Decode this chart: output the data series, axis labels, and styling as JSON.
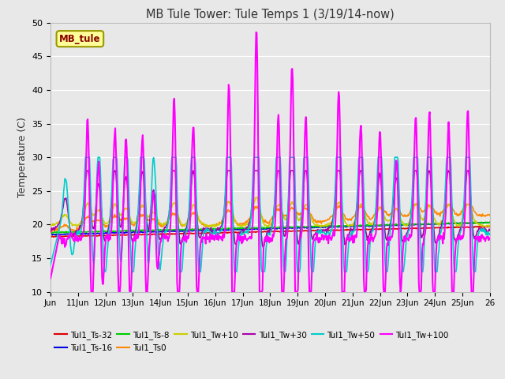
{
  "title": "MB Tule Tower: Tule Temps 1 (3/19/14-now)",
  "ylabel": "Temperature (C)",
  "xlim_days": [
    0,
    16
  ],
  "ylim": [
    10,
    50
  ],
  "yticks": [
    10,
    15,
    20,
    25,
    30,
    35,
    40,
    45,
    50
  ],
  "xtick_labels": [
    "Jun",
    "11Jun",
    "12Jun",
    "13Jun",
    "14Jun",
    "15Jun",
    "16Jun",
    "17Jun",
    "18Jun",
    "19Jun",
    "20Jun",
    "21Jun",
    "22Jun",
    "23Jun",
    "24Jun",
    "25Jun",
    "26"
  ],
  "annotation_box": "MB_tule",
  "background_color": "#e8e8e8",
  "plot_bg_color": "#e8e8e8",
  "series": [
    {
      "label": "Tul1_Ts-32",
      "color": "#dd0000",
      "lw": 1.2
    },
    {
      "label": "Tul1_Ts-16",
      "color": "#0000dd",
      "lw": 1.2
    },
    {
      "label": "Tul1_Ts-8",
      "color": "#00cc00",
      "lw": 1.2
    },
    {
      "label": "Tul1_Ts0",
      "color": "#ff8800",
      "lw": 1.2
    },
    {
      "label": "Tul1_Tw+10",
      "color": "#cccc00",
      "lw": 1.2
    },
    {
      "label": "Tul1_Tw+30",
      "color": "#aa00aa",
      "lw": 1.2
    },
    {
      "label": "Tul1_Tw+50",
      "color": "#00cccc",
      "lw": 1.2
    },
    {
      "label": "Tul1_Tw+100",
      "color": "#ff00ff",
      "lw": 1.5
    }
  ],
  "spike_times": [
    0.55,
    1.35,
    1.75,
    2.35,
    2.75,
    3.35,
    3.75,
    4.5,
    5.2,
    6.5,
    7.5,
    8.3,
    8.8,
    9.3,
    10.5,
    11.3,
    12.0,
    12.6,
    13.3,
    13.8,
    14.5,
    15.2
  ],
  "spike_heights_tw100": [
    17,
    36,
    29,
    34,
    33,
    33,
    25,
    39,
    35,
    41,
    49,
    36,
    44,
    36,
    40,
    35,
    34,
    30,
    36,
    37,
    35,
    37
  ]
}
